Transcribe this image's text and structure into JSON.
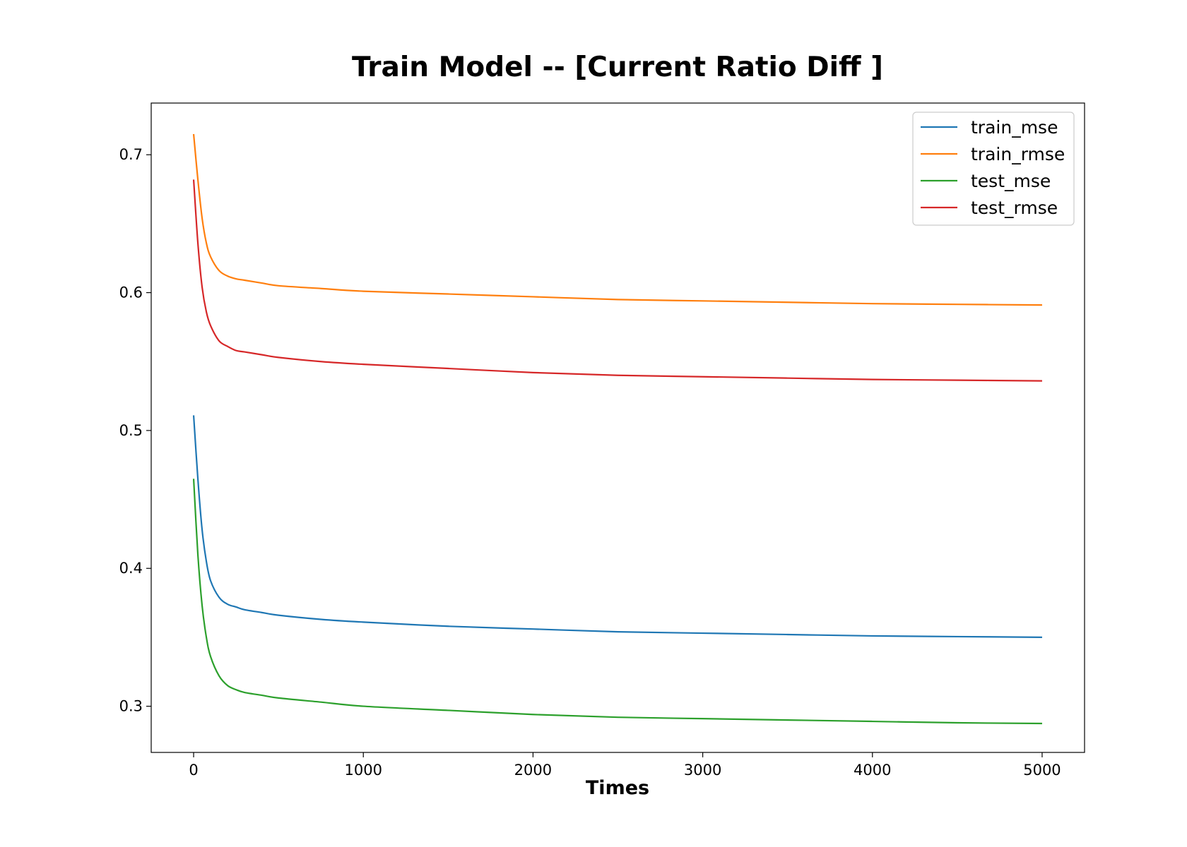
{
  "chart_data": {
    "type": "line",
    "title": "Train Model -- [Current  Ratio Diff ]",
    "xlabel": "Times",
    "ylabel": "",
    "xlim": [
      -250,
      5250
    ],
    "ylim": [
      0.2665,
      0.7375
    ],
    "xticks": [
      0,
      1000,
      2000,
      3000,
      4000,
      5000
    ],
    "xtick_labels": [
      "0",
      "1000",
      "2000",
      "3000",
      "4000",
      "5000"
    ],
    "yticks": [
      0.3,
      0.4,
      0.5,
      0.6,
      0.7
    ],
    "ytick_labels": [
      "0.3",
      "0.4",
      "0.5",
      "0.6",
      "0.7"
    ],
    "grid": false,
    "legend_position": "top-right",
    "series": [
      {
        "name": "train_mse",
        "color": "#1f77b4",
        "x": [
          0,
          25,
          50,
          75,
          100,
          150,
          200,
          250,
          300,
          400,
          500,
          750,
          1000,
          1500,
          2000,
          2500,
          3000,
          3500,
          4000,
          4500,
          5000
        ],
        "y": [
          0.511,
          0.465,
          0.428,
          0.405,
          0.391,
          0.379,
          0.374,
          0.372,
          0.37,
          0.368,
          0.366,
          0.363,
          0.361,
          0.358,
          0.356,
          0.354,
          0.353,
          0.352,
          0.351,
          0.3505,
          0.35
        ]
      },
      {
        "name": "train_rmse",
        "color": "#ff7f0e",
        "x": [
          0,
          25,
          50,
          75,
          100,
          150,
          200,
          250,
          300,
          400,
          500,
          750,
          1000,
          1500,
          2000,
          2500,
          3000,
          3500,
          4000,
          4500,
          5000
        ],
        "y": [
          0.715,
          0.682,
          0.654,
          0.636,
          0.626,
          0.616,
          0.612,
          0.61,
          0.609,
          0.607,
          0.605,
          0.603,
          0.601,
          0.599,
          0.597,
          0.595,
          0.594,
          0.593,
          0.592,
          0.5915,
          0.591
        ]
      },
      {
        "name": "test_mse",
        "color": "#2ca02c",
        "x": [
          0,
          25,
          50,
          75,
          100,
          150,
          200,
          250,
          300,
          400,
          500,
          750,
          1000,
          1500,
          2000,
          2500,
          3000,
          3500,
          4000,
          4500,
          5000
        ],
        "y": [
          0.465,
          0.41,
          0.373,
          0.35,
          0.336,
          0.322,
          0.315,
          0.312,
          0.31,
          0.308,
          0.306,
          0.303,
          0.3,
          0.297,
          0.294,
          0.292,
          0.291,
          0.29,
          0.289,
          0.288,
          0.2875
        ]
      },
      {
        "name": "test_rmse",
        "color": "#d62728",
        "x": [
          0,
          25,
          50,
          75,
          100,
          150,
          200,
          250,
          300,
          400,
          500,
          750,
          1000,
          1500,
          2000,
          2500,
          3000,
          3500,
          4000,
          4500,
          5000
        ],
        "y": [
          0.682,
          0.636,
          0.604,
          0.586,
          0.576,
          0.565,
          0.561,
          0.558,
          0.557,
          0.555,
          0.553,
          0.55,
          0.548,
          0.545,
          0.542,
          0.54,
          0.539,
          0.538,
          0.537,
          0.5365,
          0.536
        ]
      }
    ]
  }
}
